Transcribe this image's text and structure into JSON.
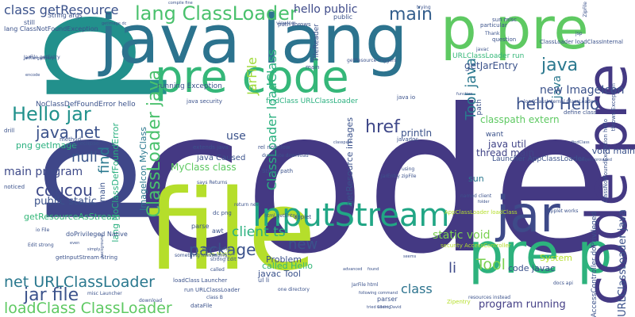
{
  "cloud": {
    "words": [
      {
        "t": "code",
        "c": "#443983"
      },
      {
        "t": "p",
        "c": "#22908c"
      },
      {
        "t": "p",
        "c": "#3f4789"
      },
      {
        "t": "java lang",
        "c": "#2c738e"
      },
      {
        "t": "p pre",
        "c": "#5ec962"
      },
      {
        "t": "file",
        "c": "#b5de2b"
      },
      {
        "t": "pre code",
        "c": "#35b779"
      },
      {
        "t": "pre p",
        "c": "#2db27d"
      },
      {
        "t": "code pre",
        "c": "#443983"
      },
      {
        "t": "jar",
        "c": "#3e4a89"
      },
      {
        "t": "InputStream",
        "c": "#21a685"
      },
      {
        "t": "lang ClassLoader",
        "c": "#4ac16d"
      },
      {
        "t": "jar file",
        "c": "#3b528b"
      },
      {
        "t": "loadClass ClassLoader",
        "c": "#5ec962"
      },
      {
        "t": "net URLClassLoader",
        "c": "#2a788e"
      },
      {
        "t": "Hello jar",
        "c": "#21918c"
      },
      {
        "t": "java net",
        "c": "#3b528b"
      },
      {
        "t": "hello Hello",
        "c": "#3b528b"
      },
      {
        "t": "main",
        "c": "#355f8d"
      },
      {
        "t": "ClassLoader loadClass",
        "c": "#2ab07f"
      },
      {
        "t": "ClassLoader java",
        "c": "#4ac16d"
      },
      {
        "t": "href",
        "c": "#3f4889"
      },
      {
        "t": "class getResource",
        "c": "#3b528b"
      },
      {
        "t": "java",
        "c": "#2a788e"
      },
      {
        "t": "coucou",
        "c": "#3e4a89"
      },
      {
        "t": "null",
        "c": "#39558c"
      },
      {
        "t": "main program",
        "c": "#3e4a89"
      },
      {
        "t": "public static",
        "c": "#3b528b"
      },
      {
        "t": "package",
        "c": "#3b528b"
      },
      {
        "t": "client ts",
        "c": "#2ab07f"
      },
      {
        "t": "new",
        "c": "#3b528b"
      },
      {
        "t": "Tool java",
        "c": "#2a788e"
      },
      {
        "t": "Tool",
        "c": "#7ad151"
      },
      {
        "t": "li",
        "c": "#3e4a89"
      },
      {
        "t": "class",
        "c": "#2c738e"
      },
      {
        "t": "program running",
        "c": "#433e85"
      },
      {
        "t": "find",
        "c": "#2a788e"
      },
      {
        "t": "JarFile",
        "c": "#a0da39"
      },
      {
        "t": "getResourceAsStream",
        "c": "#35b779"
      },
      {
        "t": "main",
        "c": "#3b528b"
      },
      {
        "t": "java",
        "c": "#2a788e"
      },
      {
        "t": "new ImageIcon",
        "c": "#3b528b"
      },
      {
        "t": "classpath extern",
        "c": "#5ec962"
      },
      {
        "t": "thread main",
        "c": "#414487"
      },
      {
        "t": "java util",
        "c": "#414487"
      },
      {
        "t": "static void",
        "c": "#7ad151"
      },
      {
        "t": "hello public",
        "c": "#3e4a89"
      },
      {
        "t": "use",
        "c": "#3b528b"
      },
      {
        "t": "MyClass class",
        "c": "#5ec962"
      },
      {
        "t": "System",
        "c": "#b5de2b"
      },
      {
        "t": "Problem",
        "c": "#3b528b"
      },
      {
        "t": "code javac",
        "c": "#3b528b"
      },
      {
        "t": "javac Tool",
        "c": "#3b528b"
      },
      {
        "t": "called Hello",
        "c": "#35b779"
      },
      {
        "t": "println",
        "c": "#3b528b"
      },
      {
        "t": "getJarEntry",
        "c": "#3b528b"
      },
      {
        "t": "lang NoClassDefFoundError",
        "c": "#2ab07f"
      },
      {
        "t": "ImageIcon MyClass",
        "c": "#2a788e"
      },
      {
        "t": "getResource images",
        "c": "#3b528b"
      },
      {
        "t": "png getImage",
        "c": "#2ab07f"
      },
      {
        "t": "java Caused",
        "c": "#3b528b"
      },
      {
        "t": "sun",
        "c": "#2a788e"
      },
      {
        "t": "void main",
        "c": "#3b528b"
      },
      {
        "t": "running Exception",
        "c": "#3b528b"
      },
      {
        "t": "NoClassDefFoundError hello",
        "c": "#3b528b"
      },
      {
        "t": "findClass URLClassLoader",
        "c": "#2ab07f"
      },
      {
        "t": "FileReader",
        "c": "#3b528b"
      },
      {
        "t": "Launcher AppClassLoader",
        "c": "#3b528b"
      },
      {
        "t": "URLClassLoader java",
        "c": "#3b528b"
      },
      {
        "t": "URLClassLoader run",
        "c": "#35b779"
      },
      {
        "t": "getResource triggers",
        "c": "#3b528b"
      },
      {
        "t": "public",
        "c": "#3b528b"
      },
      {
        "t": "main",
        "c": "#3b528b"
      },
      {
        "t": "lang ClassNotFoundException",
        "c": "#3b528b"
      },
      {
        "t": "String args",
        "c": "#3b528b"
      },
      {
        "t": "still",
        "c": "#3b528b"
      },
      {
        "t": "path throws",
        "c": "#3b528b"
      },
      {
        "t": "ClassLoader loadClassInternal",
        "c": "#3b528b"
      },
      {
        "t": "loadClassInternal ClassLoader",
        "c": "#3b528b"
      },
      {
        "t": "sun misc",
        "c": "#3b528b"
      },
      {
        "t": "path",
        "c": "#3b528b"
      },
      {
        "t": "want",
        "c": "#3b528b"
      },
      {
        "t": "getInputStream String",
        "c": "#3b528b"
      },
      {
        "t": "doPrivileged Native",
        "c": "#3b528b"
      },
      {
        "t": "run URLClassLoader",
        "c": "#3b528b"
      },
      {
        "t": "loadClass Launcher",
        "c": "#3b528b"
      },
      {
        "t": "misc Launcher",
        "c": "#3b528b"
      },
      {
        "t": "AppClassLoader loadClass",
        "c": "#b5de2b"
      },
      {
        "t": "AccessController doPrivileged",
        "c": "#3b528b"
      },
      {
        "t": "ClassNotFoundException hello",
        "c": "#3b528b"
      },
      {
        "t": "throws Exception",
        "c": "#3b528b"
      },
      {
        "t": "JarFile getEntry",
        "c": "#3b528b"
      },
      {
        "t": "String path",
        "c": "#3b528b"
      },
      {
        "t": "one directory",
        "c": "#3b528b"
      },
      {
        "t": "rel nofollow",
        "c": "#3b528b"
      },
      {
        "t": "duplicate download",
        "c": "#3b528b"
      },
      {
        "t": "html getEntry",
        "c": "#3b528b"
      },
      {
        "t": "return new",
        "c": "#3b528b"
      },
      {
        "t": "security AccessController",
        "c": "#b5de2b"
      },
      {
        "t": "entry name",
        "c": "#3b528b"
      },
      {
        "t": "Native Method",
        "c": "#b5de2b"
      },
      {
        "t": "strong Edit",
        "c": "#3b528b"
      },
      {
        "t": "JarEntry zipFile",
        "c": "#3b528b"
      },
      {
        "t": "java security",
        "c": "#3b528b"
      },
      {
        "t": "says Returns",
        "c": "#3b528b"
      },
      {
        "t": "extends java",
        "c": "#3b528b"
      },
      {
        "t": "io File",
        "c": "#3b528b"
      },
      {
        "t": "Edit strong",
        "c": "#3b528b"
      },
      {
        "t": "parse",
        "c": "#3b528b"
      },
      {
        "t": "awt",
        "c": "#3b528b"
      },
      {
        "t": "something messaging",
        "c": "#3b528b"
      },
      {
        "t": "dc png",
        "c": "#3b528b"
      },
      {
        "t": "drill",
        "c": "#3b528b"
      },
      {
        "t": "method",
        "c": "#3b528b"
      },
      {
        "t": "org eclipse",
        "c": "#3b528b"
      },
      {
        "t": "noticed",
        "c": "#3b528b"
      },
      {
        "t": "viewing",
        "c": "#3b528b"
      },
      {
        "t": "trying",
        "c": "#3b528b"
      },
      {
        "t": "particular",
        "c": "#3b528b"
      },
      {
        "t": "question",
        "c": "#3b528b"
      },
      {
        "t": "javadoc",
        "c": "#3b528b"
      },
      {
        "t": "using",
        "c": "#3b528b"
      },
      {
        "t": "javac",
        "c": "#3b528b"
      },
      {
        "t": "java io",
        "c": "#3b528b"
      },
      {
        "t": "JarFile html",
        "c": "#3b528b"
      },
      {
        "t": "Zipentry",
        "c": "#b5de2b"
      },
      {
        "t": "docs api",
        "c": "#3b528b"
      },
      {
        "t": "define class",
        "c": "#3b528b"
      },
      {
        "t": "applet",
        "c": "#3b528b"
      },
      {
        "t": "class B",
        "c": "#3b528b"
      },
      {
        "t": "dataFile",
        "c": "#3b528b"
      },
      {
        "t": "download",
        "c": "#3b528b"
      },
      {
        "t": "ul li",
        "c": "#3b528b"
      },
      {
        "t": "parser",
        "c": "#3b528b"
      },
      {
        "t": "named client",
        "c": "#3b528b"
      },
      {
        "t": "applet works",
        "c": "#3b528b"
      },
      {
        "t": "project provided",
        "c": "#3b528b"
      },
      {
        "t": "resources instead",
        "c": "#3b528b"
      },
      {
        "t": "following command",
        "c": "#3b528b"
      },
      {
        "t": "Thank",
        "c": "#3b528b"
      },
      {
        "t": "findClass",
        "c": "#3b528b"
      },
      {
        "t": "JarFile getEntry",
        "c": "#3b528b"
      },
      {
        "t": "encode",
        "c": "#3b528b"
      },
      {
        "t": "background",
        "c": "#3b528b"
      },
      {
        "t": "compile fine",
        "c": "#3b528b"
      },
      {
        "t": "ZipFile",
        "c": "#3b528b"
      },
      {
        "t": "getImage dc",
        "c": "#3b528b"
      },
      {
        "t": "Client David",
        "c": "#3b528b"
      },
      {
        "t": "tried adding",
        "c": "#3b528b"
      },
      {
        "t": "function",
        "c": "#3b528b"
      },
      {
        "t": "folder",
        "c": "#3b528b"
      },
      {
        "t": "called",
        "c": "#3b528b"
      },
      {
        "t": "jsp",
        "c": "#3b528b"
      },
      {
        "t": "classpath",
        "c": "#3b528b"
      },
      {
        "t": "seems",
        "c": "#3b528b"
      },
      {
        "t": "found",
        "c": "#3b528b"
      },
      {
        "t": "advanced",
        "c": "#3b528b"
      },
      {
        "t": "simply",
        "c": "#3b528b"
      },
      {
        "t": "even",
        "c": "#3b528b"
      },
      {
        "t": "dc",
        "c": "#3b528b"
      }
    ]
  }
}
